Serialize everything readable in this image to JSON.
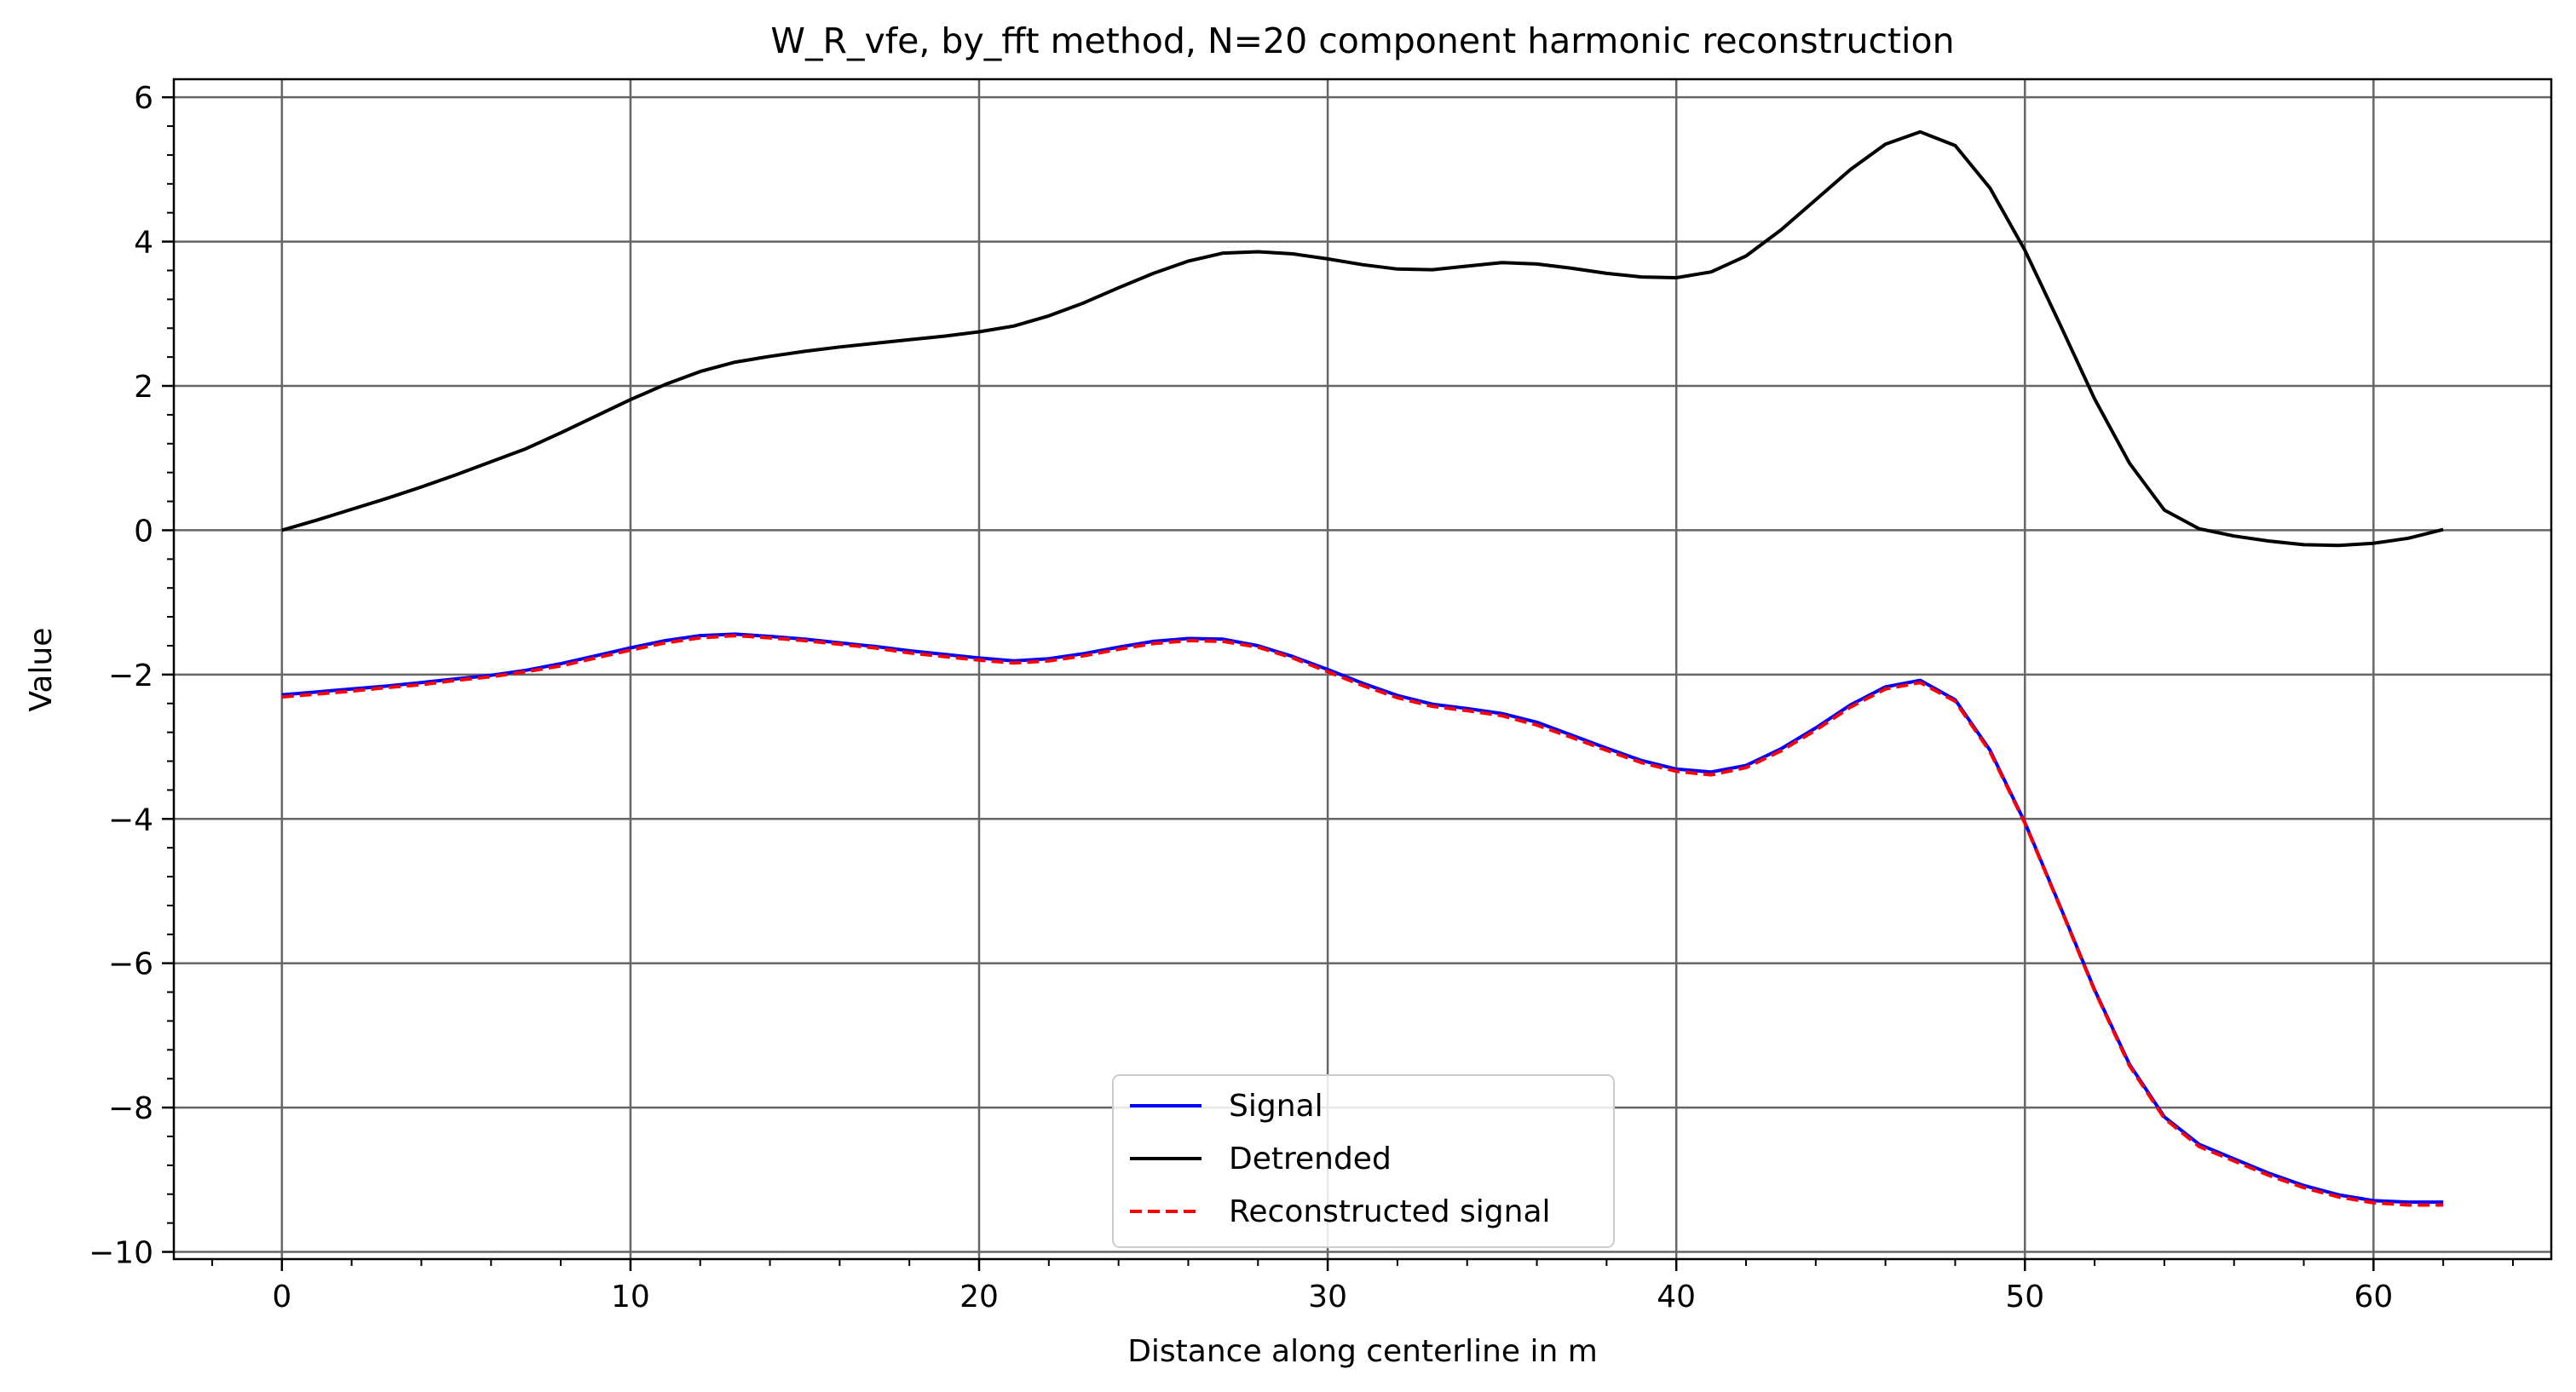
{
  "chart_data": {
    "type": "line",
    "title": "W_R_vfe, by_fft method, N=20 component harmonic reconstruction",
    "xlabel": "Distance along centerline in m",
    "ylabel": "Value",
    "xlim": [
      -3.1,
      65.1
    ],
    "ylim": [
      -10.1,
      6.25
    ],
    "xticks": [
      0,
      10,
      20,
      30,
      40,
      50,
      60
    ],
    "yticks": [
      -10,
      -8,
      -6,
      -4,
      -2,
      0,
      2,
      4,
      6
    ],
    "xtick_labels": [
      "0",
      "10",
      "20",
      "30",
      "40",
      "50",
      "60"
    ],
    "ytick_labels": [
      "−10",
      "−8",
      "−6",
      "−4",
      "−2",
      "0",
      "2",
      "4",
      "6"
    ],
    "grid": true,
    "minor_ticks": true,
    "legend_position": "lower center",
    "x": [
      0,
      1,
      2,
      3,
      4,
      5,
      6,
      7,
      8,
      9,
      10,
      11,
      12,
      13,
      14,
      15,
      16,
      17,
      18,
      19,
      20,
      21,
      22,
      23,
      24,
      25,
      26,
      27,
      28,
      29,
      30,
      31,
      32,
      33,
      34,
      35,
      36,
      37,
      38,
      39,
      40,
      41,
      42,
      43,
      44,
      45,
      46,
      47,
      48,
      49,
      50,
      51,
      52,
      53,
      54,
      55,
      56,
      57,
      58,
      59,
      60,
      61,
      62
    ],
    "series": [
      {
        "name": "Signal",
        "color": "#0000ff",
        "style": "solid",
        "values": [
          -2.28,
          -2.24,
          -2.2,
          -2.16,
          -2.11,
          -2.06,
          -2.01,
          -1.94,
          -1.85,
          -1.74,
          -1.63,
          -1.53,
          -1.46,
          -1.44,
          -1.47,
          -1.51,
          -1.56,
          -1.61,
          -1.67,
          -1.72,
          -1.77,
          -1.81,
          -1.78,
          -1.71,
          -1.62,
          -1.54,
          -1.5,
          -1.51,
          -1.6,
          -1.75,
          -1.93,
          -2.12,
          -2.29,
          -2.41,
          -2.47,
          -2.54,
          -2.66,
          -2.84,
          -3.02,
          -3.19,
          -3.31,
          -3.35,
          -3.26,
          -3.03,
          -2.74,
          -2.42,
          -2.17,
          -2.08,
          -2.35,
          -3.05,
          -4.05,
          -5.2,
          -6.37,
          -7.4,
          -8.13,
          -8.51,
          -8.71,
          -8.91,
          -9.08,
          -9.21,
          -9.29,
          -9.31,
          -9.31
        ]
      },
      {
        "name": "Detrended",
        "color": "#000000",
        "style": "solid",
        "values": [
          0.0,
          0.14,
          0.29,
          0.44,
          0.6,
          0.77,
          0.95,
          1.13,
          1.35,
          1.58,
          1.81,
          2.02,
          2.2,
          2.33,
          2.41,
          2.48,
          2.54,
          2.59,
          2.64,
          2.69,
          2.75,
          2.83,
          2.97,
          3.15,
          3.36,
          3.56,
          3.73,
          3.84,
          3.86,
          3.83,
          3.76,
          3.68,
          3.62,
          3.61,
          3.66,
          3.71,
          3.69,
          3.63,
          3.56,
          3.51,
          3.5,
          3.58,
          3.8,
          4.16,
          4.58,
          5.0,
          5.35,
          5.52,
          5.33,
          4.74,
          3.88,
          2.86,
          1.82,
          0.93,
          0.28,
          0.02,
          -0.08,
          -0.15,
          -0.2,
          -0.21,
          -0.18,
          -0.11,
          0.01
        ]
      },
      {
        "name": "Reconstructed signal",
        "color": "#ff0000",
        "style": "dashed",
        "values": [
          -2.31,
          -2.27,
          -2.23,
          -2.18,
          -2.14,
          -2.08,
          -2.03,
          -1.96,
          -1.88,
          -1.77,
          -1.66,
          -1.56,
          -1.49,
          -1.46,
          -1.49,
          -1.53,
          -1.58,
          -1.63,
          -1.7,
          -1.75,
          -1.8,
          -1.84,
          -1.81,
          -1.74,
          -1.65,
          -1.57,
          -1.53,
          -1.54,
          -1.62,
          -1.77,
          -1.96,
          -2.15,
          -2.32,
          -2.44,
          -2.5,
          -2.57,
          -2.7,
          -2.87,
          -3.05,
          -3.22,
          -3.34,
          -3.39,
          -3.29,
          -3.06,
          -2.77,
          -2.45,
          -2.2,
          -2.11,
          -2.37,
          -3.07,
          -4.06,
          -5.21,
          -6.38,
          -7.42,
          -8.15,
          -8.54,
          -8.74,
          -8.94,
          -9.11,
          -9.24,
          -9.32,
          -9.35,
          -9.35
        ]
      }
    ]
  }
}
